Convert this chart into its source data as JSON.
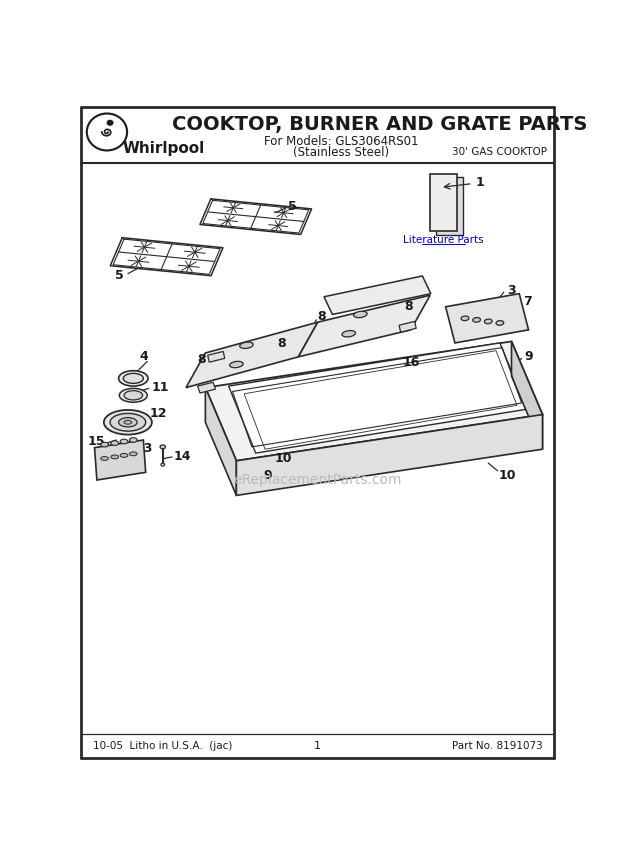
{
  "title": "COOKTOP, BURNER AND GRATE PARTS",
  "model_line1": "For Models: GLS3064RS01",
  "model_line2": "(Stainless Steel)",
  "type_label": "30' GAS COOKTOP",
  "whirlpool_text": "Whirlpool",
  "footer_left": "10-05  Litho in U.S.A.  (jac)",
  "footer_center": "1",
  "footer_right": "Part No. 8191073",
  "watermark": "eReplacementParts.com",
  "literature_parts": "Literature Parts",
  "bg_color": "#ffffff",
  "line_color": "#2a2a2a",
  "text_color": "#1a1a1a"
}
